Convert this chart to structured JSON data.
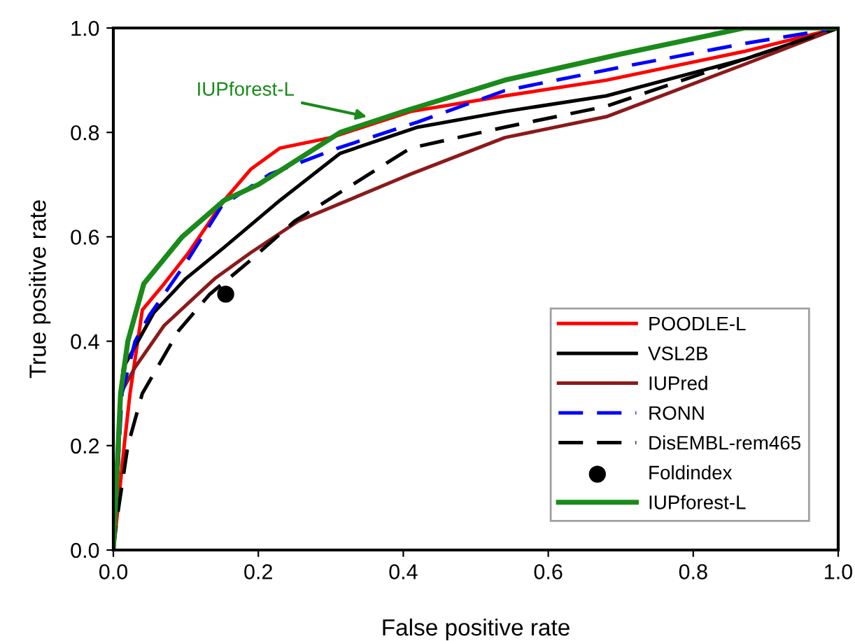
{
  "chart_data": {
    "type": "line",
    "xlabel": "False positive rate",
    "ylabel": "True positive rate",
    "xlim": [
      0,
      1
    ],
    "ylim": [
      0,
      1
    ],
    "xticks": [
      {
        "value": 0,
        "label": "0.0"
      },
      {
        "value": 0.2,
        "label": "0.2"
      },
      {
        "value": 0.4,
        "label": "0.4"
      },
      {
        "value": 0.6,
        "label": "0.6"
      },
      {
        "value": 0.8,
        "label": "0.8"
      },
      {
        "value": 1,
        "label": "1.0"
      }
    ],
    "yticks": [
      {
        "value": 0,
        "label": "0.0"
      },
      {
        "value": 0.2,
        "label": "0.2"
      },
      {
        "value": 0.4,
        "label": "0.4"
      },
      {
        "value": 0.6,
        "label": "0.6"
      },
      {
        "value": 0.8,
        "label": "0.8"
      },
      {
        "value": 1,
        "label": "1.0"
      }
    ],
    "grid": false,
    "legend": "bottom right",
    "series": [
      {
        "name": "POODLE-L",
        "color": "#ff0000",
        "line_style": "solid",
        "x": [
          0,
          0.004,
          0.015,
          0.023,
          0.04,
          0.07,
          0.104,
          0.153,
          0.19,
          0.23,
          0.3,
          0.41,
          0.54,
          0.68,
          0.87,
          1
        ],
        "values": [
          0,
          0.05,
          0.2,
          0.3,
          0.46,
          0.51,
          0.57,
          0.67,
          0.73,
          0.77,
          0.79,
          0.84,
          0.87,
          0.9,
          0.955,
          1
        ]
      },
      {
        "name": "VSL2B",
        "color": "#000000",
        "line_style": "solid",
        "x": [
          0,
          0.005,
          0.01,
          0.014,
          0.056,
          0.1,
          0.153,
          0.23,
          0.313,
          0.42,
          0.54,
          0.68,
          0.87,
          1
        ],
        "values": [
          0,
          0.15,
          0.3,
          0.35,
          0.455,
          0.52,
          0.58,
          0.67,
          0.76,
          0.81,
          0.84,
          0.87,
          0.94,
          1
        ]
      },
      {
        "name": "IUPred",
        "color": "#8b1a1a",
        "line_style": "solid",
        "x": [
          0,
          0.007,
          0.01,
          0.03,
          0.07,
          0.14,
          0.19,
          0.255,
          0.41,
          0.54,
          0.68,
          0.87,
          1
        ],
        "values": [
          0,
          0.17,
          0.3,
          0.35,
          0.43,
          0.52,
          0.57,
          0.63,
          0.72,
          0.79,
          0.83,
          0.93,
          1
        ]
      },
      {
        "name": "RONN",
        "color": "#0000ff",
        "line_style": "dashed",
        "x": [
          0,
          0.012,
          0.03,
          0.05,
          0.1,
          0.15,
          0.216,
          0.31,
          0.42,
          0.54,
          0.7,
          0.87,
          1
        ],
        "values": [
          0,
          0.3,
          0.4,
          0.45,
          0.55,
          0.66,
          0.72,
          0.77,
          0.82,
          0.88,
          0.925,
          0.97,
          1
        ]
      },
      {
        "name": "DisEMBL-rem465",
        "color": "#000000",
        "line_style": "dashed",
        "x": [
          0,
          0.004,
          0.02,
          0.04,
          0.09,
          0.133,
          0.185,
          0.25,
          0.41,
          0.54,
          0.68,
          0.87,
          1
        ],
        "values": [
          0,
          0.05,
          0.2,
          0.3,
          0.42,
          0.49,
          0.55,
          0.63,
          0.77,
          0.81,
          0.85,
          0.94,
          1
        ]
      },
      {
        "name": "Foldindex",
        "type": "scatter",
        "color": "#000000",
        "marker": "circle",
        "x": [
          0.155
        ],
        "values": [
          0.49
        ]
      },
      {
        "name": "IUPforest-L",
        "color": "#1a8a1a",
        "line_style": "solid",
        "x": [
          0,
          0.005,
          0.01,
          0.02,
          0.042,
          0.095,
          0.153,
          0.2,
          0.313,
          0.4,
          0.54,
          0.7,
          0.87,
          1
        ],
        "values": [
          0,
          0.15,
          0.3,
          0.4,
          0.51,
          0.6,
          0.67,
          0.7,
          0.8,
          0.84,
          0.9,
          0.95,
          1,
          1
        ]
      }
    ],
    "annotations": [
      {
        "text": "IUPforest-L",
        "x": 0.35,
        "y": 0.83
      }
    ]
  }
}
